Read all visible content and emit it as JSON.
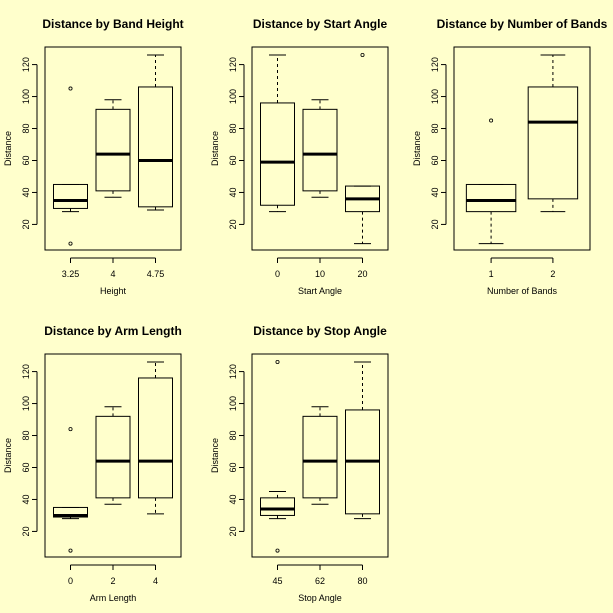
{
  "chart_data": [
    {
      "type": "boxplot",
      "title": "Distance by Band Height",
      "xlabel": "Height",
      "ylabel": "Distance",
      "ylim": [
        4,
        131
      ],
      "yticks": [
        20,
        40,
        60,
        80,
        100,
        120
      ],
      "categories": [
        "3.25",
        "4",
        "4.75"
      ],
      "boxes": [
        {
          "min": 28,
          "q1": 30,
          "median": 35,
          "q3": 45,
          "max": 45,
          "outliers": [
            8,
            105
          ]
        },
        {
          "min": 37,
          "q1": 41,
          "median": 64,
          "q3": 92,
          "max": 98,
          "outliers": []
        },
        {
          "min": 29,
          "q1": 31,
          "median": 60,
          "q3": 106,
          "max": 126,
          "outliers": []
        }
      ]
    },
    {
      "type": "boxplot",
      "title": "Distance by Start Angle",
      "xlabel": "Start Angle",
      "ylabel": "Distance",
      "ylim": [
        4,
        131
      ],
      "yticks": [
        20,
        40,
        60,
        80,
        100,
        120
      ],
      "categories": [
        "0",
        "10",
        "20"
      ],
      "boxes": [
        {
          "min": 28,
          "q1": 32,
          "median": 59,
          "q3": 96,
          "max": 126,
          "outliers": []
        },
        {
          "min": 37,
          "q1": 41,
          "median": 64,
          "q3": 92,
          "max": 98,
          "outliers": []
        },
        {
          "min": 8,
          "q1": 28,
          "median": 36,
          "q3": 44,
          "max": 44,
          "outliers": [
            126
          ]
        }
      ]
    },
    {
      "type": "boxplot",
      "title": "Distance by Number of Bands",
      "xlabel": "Number of Bands",
      "ylabel": "Distance",
      "ylim": [
        4,
        131
      ],
      "yticks": [
        20,
        40,
        60,
        80,
        100,
        120
      ],
      "categories": [
        "1",
        "2"
      ],
      "boxes": [
        {
          "min": 8,
          "q1": 28,
          "median": 35,
          "q3": 45,
          "max": 45,
          "outliers": [
            85
          ]
        },
        {
          "min": 28,
          "q1": 36,
          "median": 84,
          "q3": 106,
          "max": 126,
          "outliers": []
        }
      ]
    },
    {
      "type": "boxplot",
      "title": "Distance by Arm Length",
      "xlabel": "Arm Length",
      "ylabel": "Distance",
      "ylim": [
        4,
        131
      ],
      "yticks": [
        20,
        40,
        60,
        80,
        100,
        120
      ],
      "categories": [
        "0",
        "2",
        "4"
      ],
      "boxes": [
        {
          "min": 28,
          "q1": 29,
          "median": 30,
          "q3": 35,
          "max": 35,
          "outliers": [
            8,
            84
          ]
        },
        {
          "min": 37,
          "q1": 41,
          "median": 64,
          "q3": 92,
          "max": 98,
          "outliers": []
        },
        {
          "min": 31,
          "q1": 41,
          "median": 64,
          "q3": 116,
          "max": 126,
          "outliers": []
        }
      ]
    },
    {
      "type": "boxplot",
      "title": "Distance by Stop Angle",
      "xlabel": "Stop Angle",
      "ylabel": "Distance",
      "ylim": [
        4,
        131
      ],
      "yticks": [
        20,
        40,
        60,
        80,
        100,
        120
      ],
      "categories": [
        "45",
        "62",
        "80"
      ],
      "boxes": [
        {
          "min": 28,
          "q1": 30,
          "median": 34,
          "q3": 41,
          "max": 45,
          "outliers": [
            8,
            126
          ]
        },
        {
          "min": 37,
          "q1": 41,
          "median": 64,
          "q3": 92,
          "max": 98,
          "outliers": []
        },
        {
          "min": 28,
          "q1": 31,
          "median": 64,
          "q3": 96,
          "max": 126,
          "outliers": []
        }
      ]
    }
  ]
}
